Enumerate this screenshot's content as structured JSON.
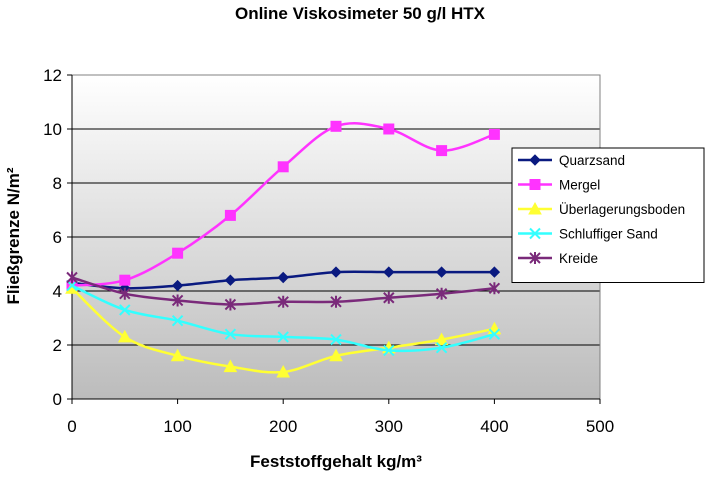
{
  "chart_data": {
    "type": "line",
    "title": "Online Viskosimeter 50 g/l HTX",
    "xlabel": "Feststoffgehalt kg/m³",
    "ylabel": "Fließgrenze N/m²",
    "xlim": [
      0,
      500
    ],
    "ylim": [
      0,
      12
    ],
    "xticks": [
      "0",
      "100",
      "200",
      "300",
      "400",
      "500"
    ],
    "yticks": [
      "0",
      "2",
      "4",
      "6",
      "8",
      "10",
      "12"
    ],
    "grid": "horizontal",
    "legend_position": "right",
    "x": [
      0,
      50,
      100,
      150,
      200,
      250,
      300,
      350,
      400
    ],
    "series": [
      {
        "name": "Quarzsand",
        "color": "#0a1a80",
        "marker": "diamond",
        "values": [
          4.3,
          4.1,
          4.2,
          4.4,
          4.5,
          4.7,
          4.7,
          4.7,
          4.7
        ]
      },
      {
        "name": "Mergel",
        "color": "#ff33ff",
        "marker": "square",
        "values": [
          4.2,
          4.4,
          5.4,
          6.8,
          8.6,
          10.1,
          10.0,
          9.2,
          9.8
        ]
      },
      {
        "name": "Überlagerungsboden",
        "color": "#ffff33",
        "marker": "triangle",
        "values": [
          4.1,
          2.3,
          1.6,
          1.2,
          1.0,
          1.6,
          1.9,
          2.2,
          2.6
        ]
      },
      {
        "name": "Schluffiger Sand",
        "color": "#33ffff",
        "marker": "x",
        "values": [
          4.2,
          3.3,
          2.9,
          2.4,
          2.3,
          2.2,
          1.8,
          1.9,
          2.4
        ]
      },
      {
        "name": "Kreide",
        "color": "#7a2a7a",
        "marker": "asterisk",
        "values": [
          4.5,
          3.9,
          3.65,
          3.5,
          3.6,
          3.6,
          3.75,
          3.9,
          4.1
        ]
      }
    ]
  }
}
